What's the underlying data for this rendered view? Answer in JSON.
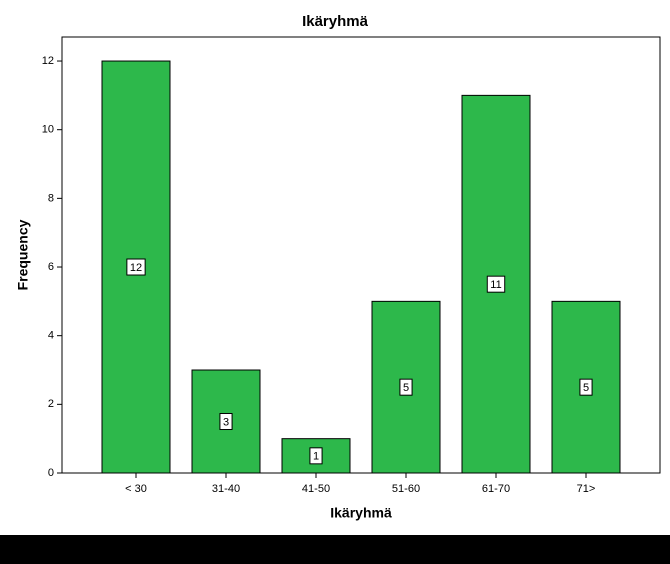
{
  "chart_data": {
    "type": "bar",
    "title": "Ikäryhmä",
    "x_label": "Ikäryhmä",
    "y_label": "Frequency",
    "categories": [
      "< 30",
      "31-40",
      "41-50",
      "51-60",
      "61-70",
      "71>"
    ],
    "values": [
      12,
      3,
      1,
      5,
      11,
      5
    ],
    "color": "#2db84b",
    "ylim": [
      0,
      12.7
    ],
    "yticks": [
      0,
      2,
      4,
      6,
      8,
      10,
      12
    ]
  }
}
